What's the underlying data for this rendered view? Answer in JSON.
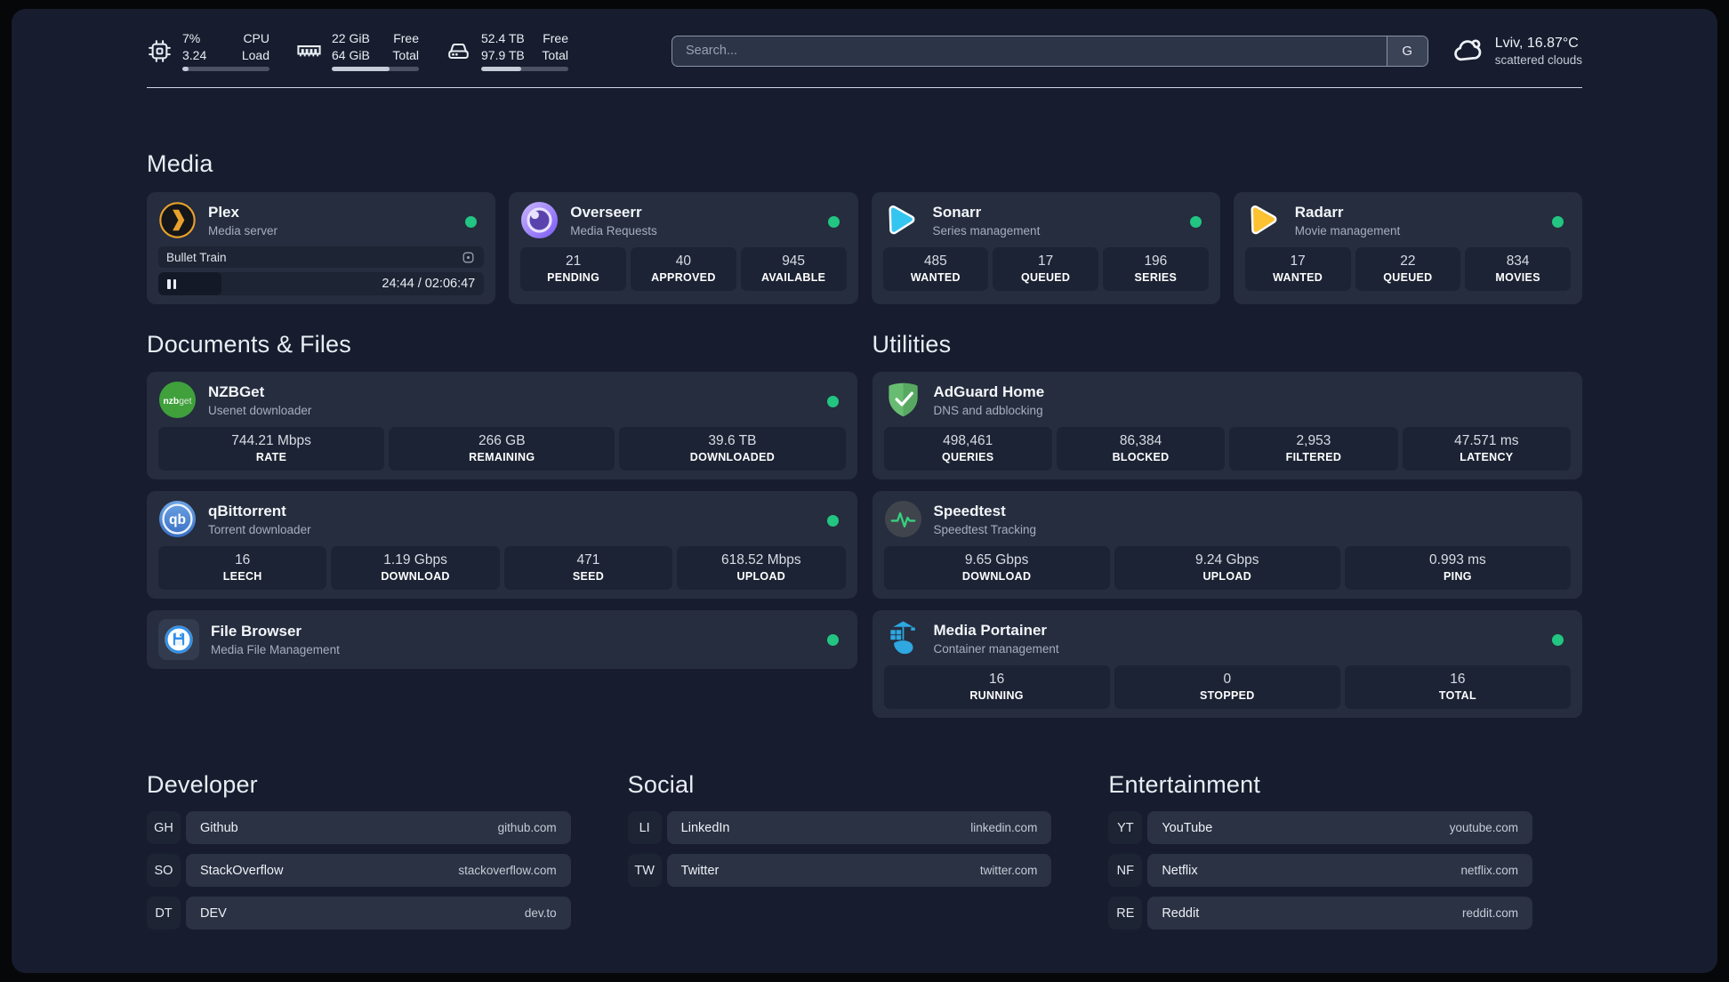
{
  "header": {
    "system_stats": [
      {
        "icon": "cpu-icon",
        "rows": [
          [
            "7%",
            "CPU"
          ],
          [
            "3.24",
            "Load"
          ]
        ],
        "progress_pct": 7
      },
      {
        "icon": "ram-icon",
        "rows": [
          [
            "22 GiB",
            "Free"
          ],
          [
            "64 GiB",
            "Total"
          ]
        ],
        "progress_pct": 66
      },
      {
        "icon": "disk-icon",
        "rows": [
          [
            "52.4 TB",
            "Free"
          ],
          [
            "97.9 TB",
            "Total"
          ]
        ],
        "progress_pct": 46
      }
    ],
    "search": {
      "placeholder": "Search...",
      "engine_button": "G"
    },
    "weather": {
      "icon": "cloud-icon",
      "location_temp": "Lviv, 16.87°C",
      "condition": "scattered clouds"
    }
  },
  "sections": {
    "media": {
      "title": "Media",
      "apps": [
        {
          "id": "plex",
          "icon": "plex-icon",
          "name": "Plex",
          "description": "Media server",
          "status": "online",
          "now_playing": {
            "title": "Bullet Train",
            "time": "24:44 / 02:06:47",
            "progress_pct": 19.5,
            "paused": true
          }
        },
        {
          "id": "overseerr",
          "icon": "overseerr-icon",
          "name": "Overseerr",
          "description": "Media Requests",
          "status": "online",
          "stats": [
            {
              "value": "21",
              "label": "PENDING"
            },
            {
              "value": "40",
              "label": "APPROVED"
            },
            {
              "value": "945",
              "label": "AVAILABLE"
            }
          ]
        },
        {
          "id": "sonarr",
          "icon": "sonarr-icon",
          "name": "Sonarr",
          "description": "Series management",
          "status": "online",
          "stats": [
            {
              "value": "485",
              "label": "WANTED"
            },
            {
              "value": "17",
              "label": "QUEUED"
            },
            {
              "value": "196",
              "label": "SERIES"
            }
          ]
        },
        {
          "id": "radarr",
          "icon": "radarr-icon",
          "name": "Radarr",
          "description": "Movie management",
          "status": "online",
          "stats": [
            {
              "value": "17",
              "label": "WANTED"
            },
            {
              "value": "22",
              "label": "QUEUED"
            },
            {
              "value": "834",
              "label": "MOVIES"
            }
          ]
        }
      ]
    },
    "documents": {
      "title": "Documents & Files",
      "apps": [
        {
          "id": "nzbget",
          "icon": "nzbget-icon",
          "name": "NZBGet",
          "description": "Usenet downloader",
          "status": "online",
          "stats": [
            {
              "value": "744.21 Mbps",
              "label": "RATE"
            },
            {
              "value": "266 GB",
              "label": "REMAINING"
            },
            {
              "value": "39.6 TB",
              "label": "DOWNLOADED"
            }
          ]
        },
        {
          "id": "qbittorrent",
          "icon": "qbittorrent-icon",
          "name": "qBittorrent",
          "description": "Torrent downloader",
          "status": "online",
          "stats": [
            {
              "value": "16",
              "label": "LEECH"
            },
            {
              "value": "1.19 Gbps",
              "label": "DOWNLOAD"
            },
            {
              "value": "471",
              "label": "SEED"
            },
            {
              "value": "618.52 Mbps",
              "label": "UPLOAD"
            }
          ]
        },
        {
          "id": "filebrowser",
          "icon": "filebrowser-icon",
          "name": "File Browser",
          "description": "Media File Management",
          "status": "online"
        }
      ]
    },
    "utilities": {
      "title": "Utilities",
      "apps": [
        {
          "id": "adguard",
          "icon": "adguard-icon",
          "name": "AdGuard Home",
          "description": "DNS and adblocking",
          "stats": [
            {
              "value": "498,461",
              "label": "QUERIES"
            },
            {
              "value": "86,384",
              "label": "BLOCKED"
            },
            {
              "value": "2,953",
              "label": "FILTERED"
            },
            {
              "value": "47.571 ms",
              "label": "LATENCY"
            }
          ]
        },
        {
          "id": "speedtest",
          "icon": "speedtest-icon",
          "name": "Speedtest",
          "description": "Speedtest Tracking",
          "stats": [
            {
              "value": "9.65 Gbps",
              "label": "DOWNLOAD"
            },
            {
              "value": "9.24 Gbps",
              "label": "UPLOAD"
            },
            {
              "value": "0.993 ms",
              "label": "PING"
            }
          ]
        },
        {
          "id": "portainer",
          "icon": "portainer-icon",
          "name": "Media Portainer",
          "description": "Container management",
          "status": "online",
          "stats": [
            {
              "value": "16",
              "label": "RUNNING"
            },
            {
              "value": "0",
              "label": "STOPPED"
            },
            {
              "value": "16",
              "label": "TOTAL"
            }
          ]
        }
      ]
    },
    "bookmarks": [
      {
        "title": "Developer",
        "links": [
          {
            "abbr": "GH",
            "name": "Github",
            "url": "github.com"
          },
          {
            "abbr": "SO",
            "name": "StackOverflow",
            "url": "stackoverflow.com"
          },
          {
            "abbr": "DT",
            "name": "DEV",
            "url": "dev.to"
          }
        ]
      },
      {
        "title": "Social",
        "links": [
          {
            "abbr": "LI",
            "name": "LinkedIn",
            "url": "linkedin.com"
          },
          {
            "abbr": "TW",
            "name": "Twitter",
            "url": "twitter.com"
          }
        ]
      },
      {
        "title": "Entertainment",
        "links": [
          {
            "abbr": "YT",
            "name": "YouTube",
            "url": "youtube.com"
          },
          {
            "abbr": "NF",
            "name": "Netflix",
            "url": "netflix.com"
          },
          {
            "abbr": "RE",
            "name": "Reddit",
            "url": "reddit.com"
          }
        ]
      }
    ]
  },
  "colors": {
    "status_online": "#22c581",
    "plex_accent": "#e9a12d",
    "sonarr_accent": "#35c5f1",
    "radarr_accent": "#fdc231"
  }
}
